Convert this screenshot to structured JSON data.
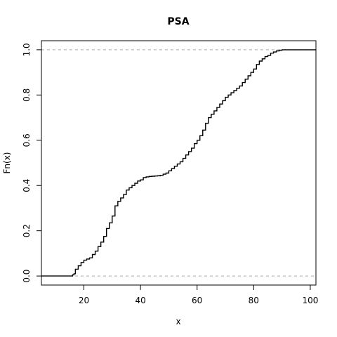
{
  "chart_data": {
    "type": "line",
    "title": "PSA",
    "xlabel": "x",
    "ylabel": "Fn(x)",
    "xlim": [
      5,
      102
    ],
    "ylim": [
      -0.04,
      1.04
    ],
    "xticks": [
      20,
      40,
      60,
      80,
      100
    ],
    "yticks": [
      0.0,
      0.2,
      0.4,
      0.6,
      0.8,
      1.0
    ],
    "ytick_labels": [
      "0.0",
      "0.2",
      "0.4",
      "0.6",
      "0.8",
      "1.0"
    ],
    "reference_lines_y": [
      0.0,
      1.0
    ],
    "grid": false,
    "series": [
      {
        "x": [
          5,
          15.5,
          16,
          16.5,
          17,
          18,
          19,
          20,
          21,
          22,
          23,
          24,
          25,
          26,
          27,
          28,
          29,
          30,
          31,
          32,
          33,
          34,
          35,
          36,
          37,
          38,
          39,
          40,
          41,
          42,
          43,
          44,
          45,
          46,
          47,
          48,
          49,
          50,
          51,
          52,
          53,
          54,
          55,
          56,
          57,
          58,
          59,
          60,
          61,
          62,
          63,
          64,
          65,
          66,
          67,
          68,
          69,
          70,
          71,
          72,
          73,
          74,
          75,
          76,
          77,
          78,
          79,
          80,
          81,
          82,
          83,
          84,
          85,
          86,
          87,
          88,
          89,
          90,
          91,
          92,
          95,
          102
        ],
        "y": [
          0.0,
          0.0,
          0.005,
          0.01,
          0.03,
          0.045,
          0.06,
          0.07,
          0.075,
          0.08,
          0.095,
          0.11,
          0.13,
          0.15,
          0.175,
          0.21,
          0.235,
          0.265,
          0.31,
          0.33,
          0.345,
          0.36,
          0.38,
          0.39,
          0.4,
          0.41,
          0.42,
          0.425,
          0.435,
          0.438,
          0.44,
          0.441,
          0.442,
          0.443,
          0.445,
          0.45,
          0.455,
          0.465,
          0.475,
          0.485,
          0.495,
          0.505,
          0.52,
          0.535,
          0.55,
          0.565,
          0.585,
          0.6,
          0.62,
          0.645,
          0.675,
          0.7,
          0.715,
          0.73,
          0.745,
          0.76,
          0.775,
          0.79,
          0.8,
          0.81,
          0.82,
          0.83,
          0.84,
          0.855,
          0.87,
          0.885,
          0.9,
          0.915,
          0.935,
          0.95,
          0.96,
          0.97,
          0.975,
          0.985,
          0.99,
          0.995,
          0.998,
          1.0,
          1.0,
          1.0,
          1.0,
          1.0
        ]
      }
    ]
  }
}
